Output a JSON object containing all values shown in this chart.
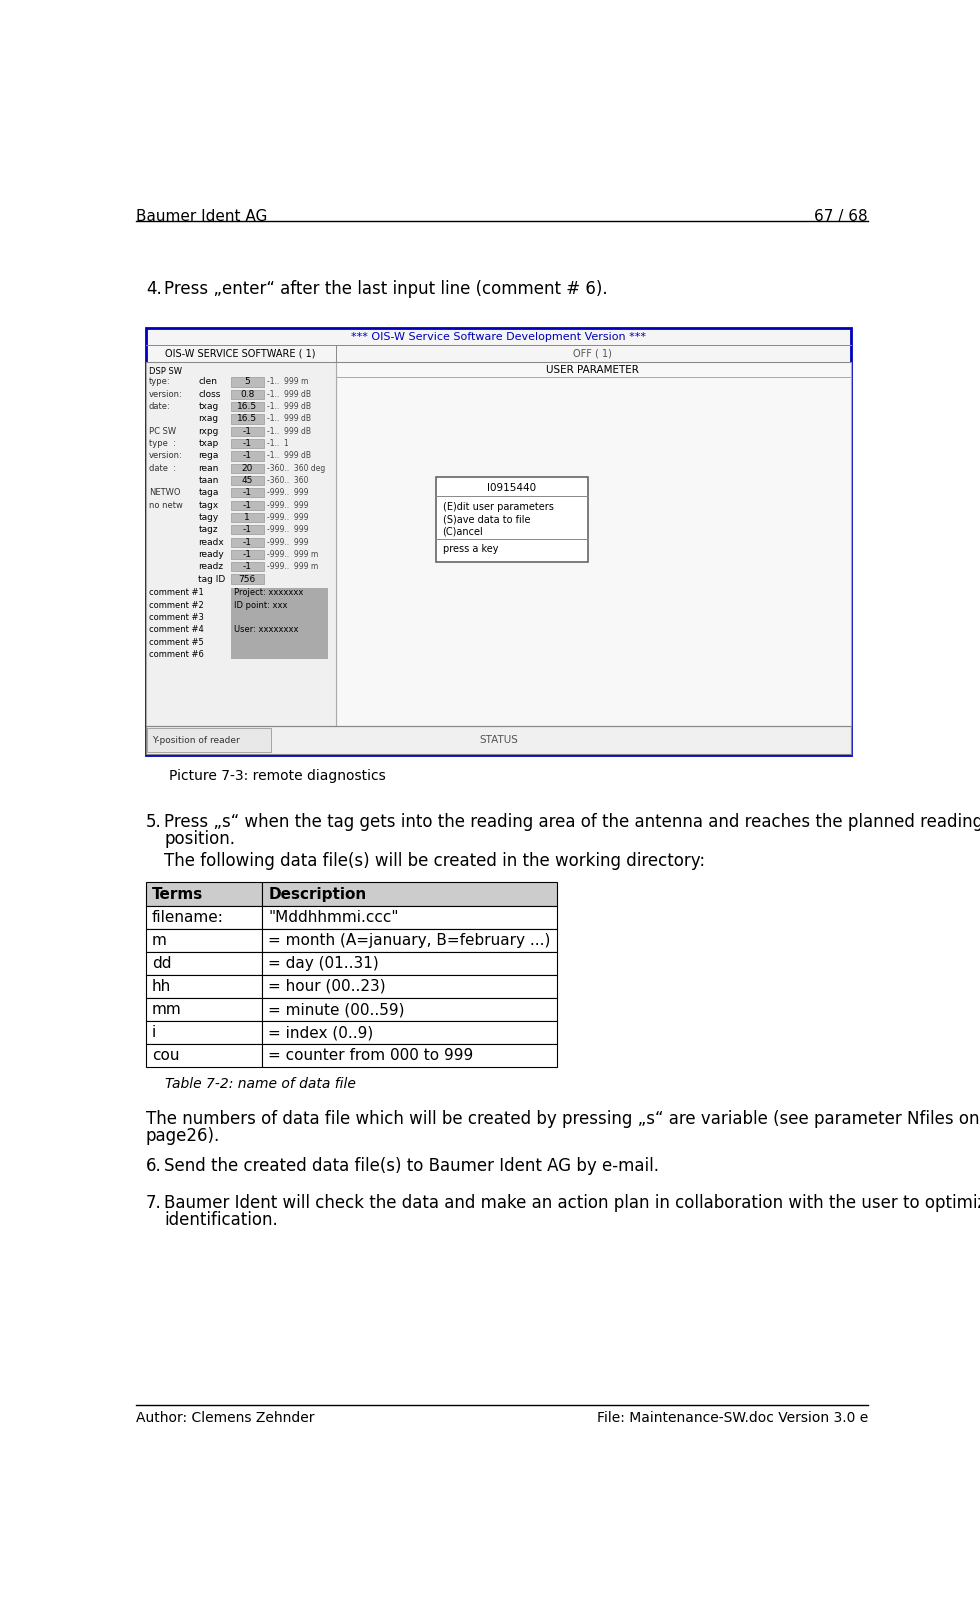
{
  "header_left": "Baumer Ident AG",
  "header_right": "67 / 68",
  "footer_left": "Author: Clemens Zehnder",
  "footer_right": "File: Maintenance-SW.doc Version 3.0 e",
  "picture_caption": "Picture 7-3: remote diagnostics",
  "table_caption": "Table 7-2: name of data file",
  "table_header": [
    "Terms",
    "Description"
  ],
  "table_rows": [
    [
      "filename:",
      "\"Mddhhmmi.ccc\""
    ],
    [
      "m",
      "= month (A=january, B=february ...)"
    ],
    [
      "dd",
      "= day (01..31)"
    ],
    [
      "hh",
      "= hour (00..23)"
    ],
    [
      "mm",
      "= minute (00..59)"
    ],
    [
      "i",
      "= index (0..9)"
    ],
    [
      "cou",
      "= counter from 000 to 999"
    ]
  ],
  "bg_color": "#ffffff",
  "header_line_color": "#000000",
  "table_border_color": "#000000",
  "table_header_bg": "#cccccc",
  "ui_rows": [
    [
      "type:",
      "clen",
      "5",
      "-1..  999 m"
    ],
    [
      "version:",
      "closs",
      "0.8",
      "-1..  999 dB"
    ],
    [
      "date:",
      "txag",
      "16.5",
      "-1..  999 dB"
    ],
    [
      "",
      "rxag",
      "16.5",
      "-1..  999 dB"
    ],
    [
      "PC SW",
      "rxpg",
      "-1",
      "-1..  999 dB"
    ],
    [
      "type  :",
      "txap",
      "-1",
      "-1..  1"
    ],
    [
      "version:",
      "rega",
      "-1",
      "-1..  999 dB"
    ],
    [
      "date  :",
      "rean",
      "20",
      "-360..  360 deg"
    ],
    [
      "",
      "taan",
      "45",
      "-360..  360"
    ],
    [
      "NETWO",
      "taga",
      "-1",
      "-999..  999"
    ],
    [
      "no netw",
      "tagx",
      "-1",
      "-999..  999"
    ],
    [
      "",
      "tagy",
      "1",
      "-999..  999"
    ],
    [
      "",
      "tagz",
      "-1",
      "-999..  999"
    ],
    [
      "",
      "readx",
      "-1",
      "-999..  999"
    ],
    [
      "",
      "ready",
      "-1",
      "-999..  999 m"
    ],
    [
      "",
      "readz",
      "-1",
      "-999..  999 m"
    ],
    [
      "",
      "tag ID",
      "756",
      ""
    ]
  ],
  "comments": [
    "comment #1",
    "comment #2",
    "comment #3",
    "comment #4",
    "comment #5",
    "comment #6"
  ],
  "comment_vals": [
    "Project: xxxxxxx",
    "ID point: xxx",
    "",
    "User: xxxxxxxx",
    "",
    ""
  ]
}
